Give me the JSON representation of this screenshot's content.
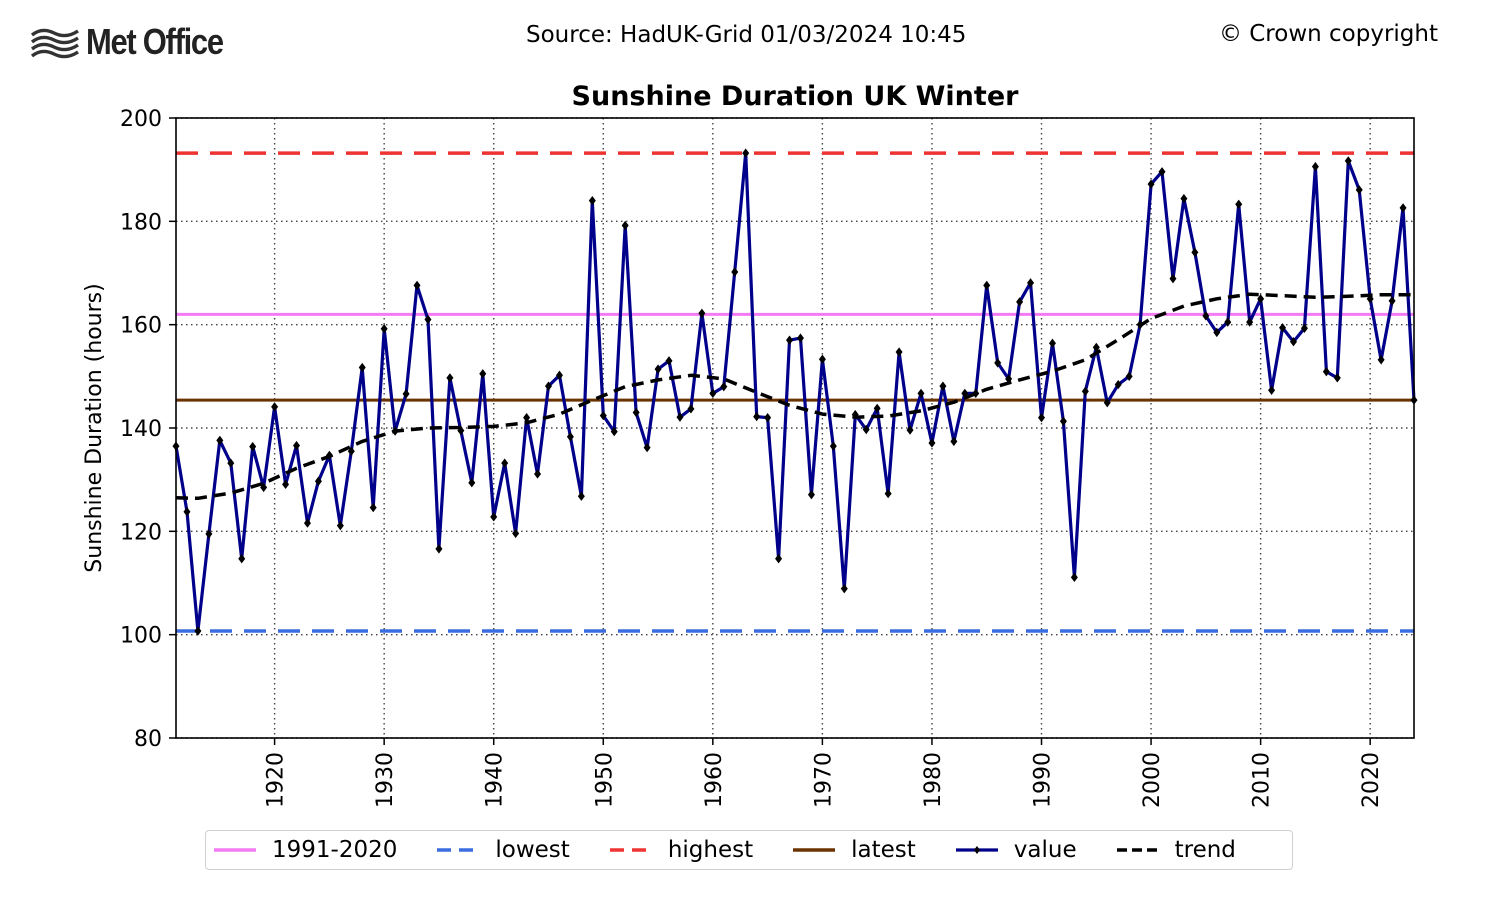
{
  "header": {
    "logo_text": "Met Office",
    "source": "Source: HadUK-Grid 01/03/2024 10:45",
    "copyright": "© Crown copyright"
  },
  "chart_data": {
    "type": "line",
    "title": "Sunshine Duration UK Winter",
    "xlabel": "",
    "ylabel": "Sunshine Duration (hours)",
    "xlim": [
      1911,
      2024
    ],
    "ylim": [
      80,
      200
    ],
    "yticks": [
      80,
      100,
      120,
      140,
      160,
      180,
      200
    ],
    "xticks": [
      1920,
      1930,
      1940,
      1950,
      1960,
      1970,
      1980,
      1990,
      2000,
      2010,
      2020
    ],
    "grid": true,
    "legend_position": "bottom",
    "colors": {
      "avg": "#f47af4",
      "lowest": "#3a6de0",
      "highest": "#ee3333",
      "latest": "#6b3300",
      "value": "#00008b",
      "trend": "#000000"
    },
    "reference_lines": {
      "avg_1991_2020": 162,
      "lowest": 100.7,
      "highest": 193.2,
      "latest": 145.4
    },
    "series": [
      {
        "name": "value",
        "x": [
          1911,
          1912,
          1913,
          1914,
          1915,
          1916,
          1917,
          1918,
          1919,
          1920,
          1921,
          1922,
          1923,
          1924,
          1925,
          1926,
          1927,
          1928,
          1929,
          1930,
          1931,
          1932,
          1933,
          1934,
          1935,
          1936,
          1937,
          1938,
          1939,
          1940,
          1941,
          1942,
          1943,
          1944,
          1945,
          1946,
          1947,
          1948,
          1949,
          1950,
          1951,
          1952,
          1953,
          1954,
          1955,
          1956,
          1957,
          1958,
          1959,
          1960,
          1961,
          1962,
          1963,
          1964,
          1965,
          1966,
          1967,
          1968,
          1969,
          1970,
          1971,
          1972,
          1973,
          1974,
          1975,
          1976,
          1977,
          1978,
          1979,
          1980,
          1981,
          1982,
          1983,
          1984,
          1985,
          1986,
          1987,
          1988,
          1989,
          1990,
          1991,
          1992,
          1993,
          1994,
          1995,
          1996,
          1997,
          1998,
          1999,
          2000,
          2001,
          2002,
          2003,
          2004,
          2005,
          2006,
          2007,
          2008,
          2009,
          2010,
          2011,
          2012,
          2013,
          2014,
          2015,
          2016,
          2017,
          2018,
          2019,
          2020,
          2021,
          2022,
          2023,
          2024
        ],
        "y": [
          136.5,
          123.8,
          100.7,
          119.5,
          137.6,
          133.2,
          114.7,
          136.4,
          128.5,
          144.1,
          129.1,
          136.6,
          121.6,
          129.7,
          134.7,
          121.1,
          135.5,
          151.7,
          124.6,
          159.2,
          139.4,
          146.6,
          167.6,
          161.0,
          116.6,
          149.7,
          139.5,
          129.4,
          150.5,
          122.8,
          133.2,
          119.6,
          142.0,
          131.1,
          148.1,
          150.2,
          138.3,
          126.8,
          184.0,
          142.4,
          139.3,
          179.2,
          143.0,
          136.2,
          151.4,
          153.0,
          142.1,
          143.7,
          162.2,
          146.7,
          148.0,
          170.2,
          193.2,
          142.2,
          142.0,
          114.7,
          157.0,
          157.4,
          127.1,
          153.3,
          136.5,
          108.9,
          142.6,
          139.7,
          143.8,
          127.3,
          154.7,
          139.6,
          146.7,
          137.1,
          148.1,
          137.4,
          146.7,
          146.7,
          167.6,
          152.6,
          149.5,
          164.4,
          168.1,
          142.0,
          156.4,
          141.3,
          111.1,
          147.1,
          155.6,
          144.9,
          148.4,
          150.0,
          160.0,
          187.2,
          189.6,
          168.9,
          184.4,
          174.0,
          161.7,
          158.5,
          160.5,
          183.3,
          160.5,
          165.0,
          147.3,
          159.4,
          156.7,
          159.3,
          190.6,
          150.9,
          149.7,
          191.7,
          186.1,
          165.0,
          153.2,
          164.6,
          182.6,
          145.4
        ]
      },
      {
        "name": "trend",
        "x": [
          1911,
          1913,
          1916,
          1919,
          1922,
          1925,
          1928,
          1931,
          1934,
          1937,
          1940,
          1943,
          1946,
          1949,
          1952,
          1955,
          1958,
          1961,
          1964,
          1967,
          1970,
          1973,
          1976,
          1979,
          1982,
          1985,
          1988,
          1991,
          1994,
          1997,
          2000,
          2003,
          2006,
          2009,
          2012,
          2015,
          2018,
          2021,
          2024
        ],
        "y": [
          126.5,
          126.4,
          127.4,
          129.3,
          132.2,
          134.5,
          137.4,
          139.4,
          140.0,
          140.1,
          140.3,
          141.0,
          142.7,
          145.4,
          148.0,
          149.3,
          150.2,
          149.5,
          146.9,
          144.4,
          142.7,
          142.1,
          142.3,
          143.3,
          145.0,
          147.5,
          149.3,
          151.0,
          153.2,
          157.1,
          161.2,
          163.6,
          165.0,
          165.9,
          165.6,
          165.3,
          165.5,
          165.8,
          165.8
        ]
      }
    ]
  },
  "legend": {
    "items": [
      {
        "key": "avg",
        "label": "1991-2020"
      },
      {
        "key": "lowest",
        "label": "lowest"
      },
      {
        "key": "highest",
        "label": "highest"
      },
      {
        "key": "latest",
        "label": "latest"
      },
      {
        "key": "value",
        "label": "value"
      },
      {
        "key": "trend",
        "label": "trend"
      }
    ]
  }
}
